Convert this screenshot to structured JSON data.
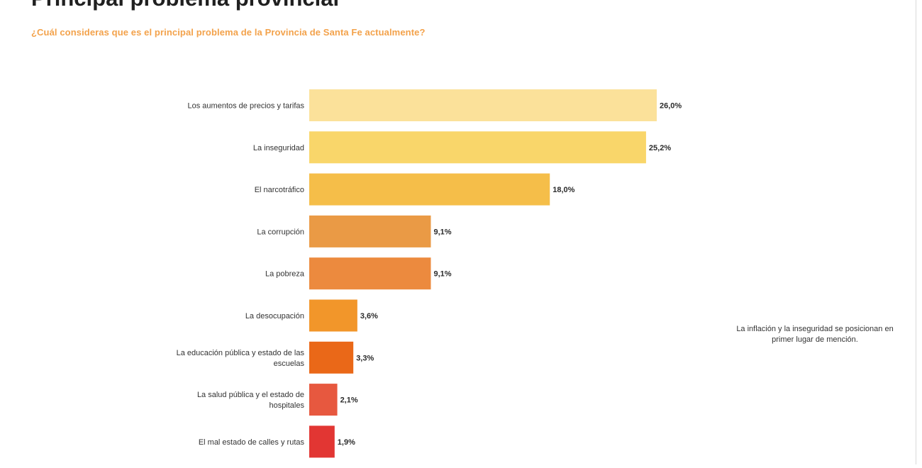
{
  "title": "Principal problema provincial",
  "subtitle": "¿Cuál consideras que es el principal problema de la Provincia de Santa Fe actualmente?",
  "note": "La inflación y la inseguridad se posicionan en primer lugar de mención.",
  "chart_data": {
    "type": "bar",
    "orientation": "horizontal",
    "categories": [
      "Los aumentos de precios y tarifas",
      "La inseguridad",
      "El narcotráfico",
      "La corrupción",
      "La pobreza",
      "La desocupación",
      "La educación pública y estado de las escuelas",
      "La salud pública y el estado de hospitales",
      "El mal estado de calles y rutas"
    ],
    "category_lines": [
      [
        "Los aumentos de precios y tarifas"
      ],
      [
        "La inseguridad"
      ],
      [
        "El narcotráfico"
      ],
      [
        "La corrupción"
      ],
      [
        "La pobreza"
      ],
      [
        "La desocupación"
      ],
      [
        "La educación pública y estado de las",
        "escuelas"
      ],
      [
        "La salud pública y el estado de",
        "hospitales"
      ],
      [
        "El mal estado de calles y rutas"
      ]
    ],
    "values": [
      26.0,
      25.2,
      18.0,
      9.1,
      9.1,
      3.6,
      3.3,
      2.1,
      1.9
    ],
    "value_labels": [
      "26,0%",
      "25,2%",
      "18,0%",
      "9,1%",
      "9,1%",
      "3,6%",
      "3,3%",
      "2,1%",
      "1,9%"
    ],
    "colors": [
      "#fbe19a",
      "#f9d66a",
      "#f5be49",
      "#ea9a45",
      "#ec8a3e",
      "#f2962a",
      "#ea6818",
      "#e7583f",
      "#e23633"
    ],
    "xlim": [
      0,
      26.0
    ],
    "grid": false,
    "legend": "none"
  }
}
